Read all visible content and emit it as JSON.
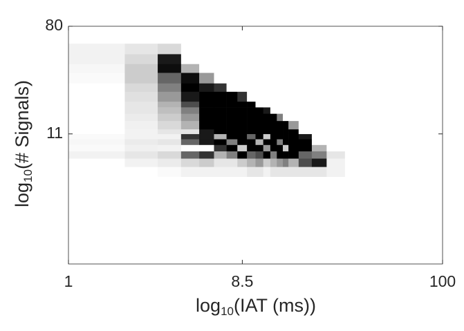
{
  "chart_data": {
    "type": "heatmap",
    "colormap": "gray_r",
    "xscale": "log",
    "yscale": "log",
    "xlabel": {
      "base": "log",
      "sub": "10",
      "rest": "(IAT (ms))"
    },
    "ylabel": {
      "base": "log",
      "sub": "10",
      "rest": "(# Signals)"
    },
    "xlim": [
      1,
      100
    ],
    "xticks": [
      1,
      8.5,
      100
    ],
    "ylim": [
      1,
      80
    ],
    "yticks": [
      11,
      80
    ],
    "x_edges": [
      1,
      2,
      3,
      4,
      5,
      6,
      7,
      8,
      9,
      10,
      11,
      12,
      13,
      14,
      15,
      17,
      20,
      24,
      30
    ],
    "y_edges": [
      5,
      6,
      7,
      8,
      9,
      10,
      11,
      12,
      14,
      16,
      18,
      20,
      24,
      28,
      34,
      40,
      48,
      58
    ],
    "z": [
      [
        0,
        0,
        0.02,
        0.05,
        0.05,
        0.05,
        0.05,
        0.05,
        0.1,
        0.1,
        0.05,
        0.1,
        0.1,
        0.1,
        0.1,
        0.1,
        0.1,
        0.05
      ],
      [
        0,
        0.05,
        0.08,
        0.15,
        0.2,
        0.1,
        0.1,
        0.2,
        0.3,
        0.4,
        0.2,
        0.3,
        0.4,
        0.5,
        0.3,
        0.7,
        0.9,
        0.05
      ],
      [
        0.05,
        0.1,
        0.15,
        0.6,
        0.8,
        0.3,
        0.5,
        1,
        0.6,
        0.7,
        1,
        0.5,
        1,
        1,
        1,
        0.6,
        0.5,
        0.1
      ],
      [
        0.02,
        0.06,
        0.05,
        0,
        0,
        0.8,
        1,
        0.2,
        1,
        1,
        0.4,
        1,
        1,
        0.2,
        1,
        1,
        0.3,
        0
      ],
      [
        0.03,
        0.08,
        0.1,
        0.6,
        0.9,
        1,
        0.5,
        1,
        1,
        0.3,
        1,
        1,
        0.5,
        1,
        1,
        1,
        0,
        0
      ],
      [
        0.02,
        0.05,
        0.05,
        0.8,
        0.9,
        0.3,
        1,
        1,
        0.6,
        1,
        0.2,
        1,
        1,
        1,
        1,
        0.9,
        0,
        0
      ],
      [
        0,
        0.05,
        0.1,
        0.1,
        0.9,
        1,
        1,
        1,
        1,
        1,
        1,
        1,
        1,
        1,
        1,
        0,
        0,
        0
      ],
      [
        0,
        0.06,
        0.15,
        0.3,
        1,
        1,
        1,
        1,
        1,
        1,
        1,
        1,
        1,
        1,
        0.4,
        0,
        0,
        0
      ],
      [
        0,
        0.08,
        0.2,
        0.4,
        1,
        1,
        1,
        1,
        1,
        1,
        1,
        1,
        0.5,
        0,
        0,
        0,
        0,
        0
      ],
      [
        0,
        0.1,
        0.25,
        0.5,
        1,
        1,
        1,
        1,
        1,
        1,
        0.9,
        0,
        0,
        0,
        0,
        0,
        0,
        0
      ],
      [
        0,
        0.1,
        0.3,
        0.7,
        1,
        1,
        1,
        1,
        1,
        0,
        0,
        0,
        0,
        0,
        0,
        0,
        0,
        0
      ],
      [
        0,
        0.12,
        0.4,
        0.9,
        1,
        1,
        1,
        0.8,
        0,
        0,
        0,
        0,
        0,
        0,
        0,
        0,
        0,
        0
      ],
      [
        0,
        0.15,
        0.5,
        1,
        0.9,
        0.8,
        0,
        0,
        0,
        0,
        0,
        0,
        0,
        0,
        0,
        0,
        0,
        0
      ],
      [
        0.02,
        0.2,
        0.6,
        0.95,
        0.4,
        0,
        0,
        0,
        0,
        0,
        0,
        0,
        0,
        0,
        0,
        0,
        0,
        0
      ],
      [
        0.03,
        0.2,
        0.95,
        0.3,
        0,
        0,
        0,
        0,
        0,
        0,
        0,
        0,
        0,
        0,
        0,
        0,
        0,
        0
      ],
      [
        0.05,
        0.15,
        0.9,
        0,
        0,
        0,
        0,
        0,
        0,
        0,
        0,
        0,
        0,
        0,
        0,
        0,
        0,
        0
      ],
      [
        0.05,
        0.1,
        0.15,
        0,
        0,
        0,
        0,
        0,
        0,
        0,
        0,
        0,
        0,
        0,
        0,
        0,
        0,
        0
      ]
    ]
  }
}
